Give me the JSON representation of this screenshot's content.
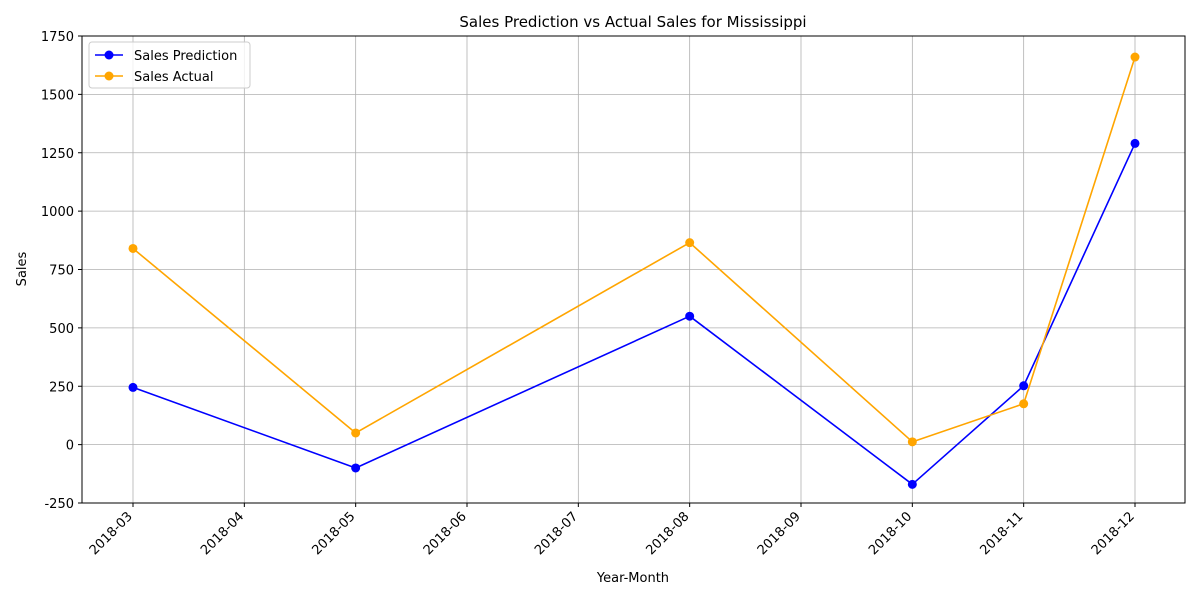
{
  "chart_data": {
    "type": "line",
    "title": "Sales Prediction vs Actual Sales for Mississippi",
    "xlabel": "Year-Month",
    "ylabel": "Sales",
    "x_ticks": [
      "2018-03",
      "2018-04",
      "2018-05",
      "2018-06",
      "2018-07",
      "2018-08",
      "2018-09",
      "2018-10",
      "2018-11",
      "2018-12"
    ],
    "y_ticks": [
      -250,
      0,
      250,
      500,
      750,
      1000,
      1250,
      1500,
      1750
    ],
    "ylim": [
      -250,
      1750
    ],
    "grid": true,
    "legend_position": "top-left",
    "x": [
      "2018-03",
      "2018-05",
      "2018-08",
      "2018-10",
      "2018-11",
      "2018-12"
    ],
    "series": [
      {
        "name": "Sales Prediction",
        "color": "#0000ff",
        "values": [
          245,
          -100,
          550,
          -170,
          252,
          1290
        ]
      },
      {
        "name": "Sales Actual",
        "color": "#ffa500",
        "values": [
          840,
          50,
          865,
          12,
          175,
          1660
        ]
      }
    ]
  }
}
